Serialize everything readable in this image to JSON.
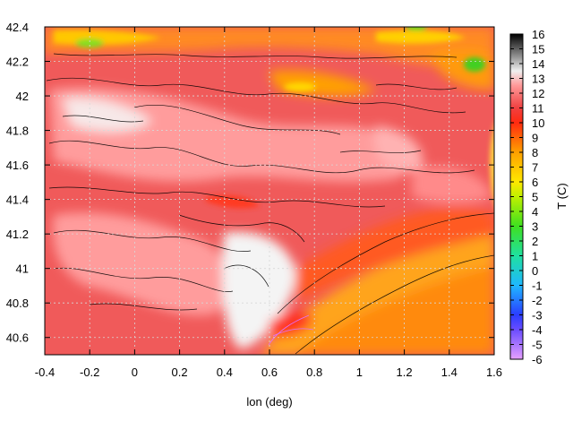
{
  "chart_data": {
    "type": "heatmap",
    "title": "",
    "xlabel": "lon (deg)",
    "ylabel": "",
    "colorbar_label": "T (C)",
    "xlim": [
      -0.4,
      1.6
    ],
    "ylim": [
      40.5,
      42.4
    ],
    "clim": [
      -6,
      16
    ],
    "x_ticks": [
      -0.4,
      -0.2,
      0,
      0.2,
      0.4,
      0.6,
      0.8,
      1,
      1.2,
      1.4,
      1.6
    ],
    "x_tick_labels": [
      "-0.4",
      "-0.2",
      "0",
      "0.2",
      "0.4",
      "0.6",
      "0.8",
      "1",
      "1.2",
      "1.4",
      "1.6"
    ],
    "y_ticks": [
      40.6,
      40.8,
      41,
      41.2,
      41.4,
      41.6,
      41.8,
      42,
      42.2,
      42.4
    ],
    "y_tick_labels": [
      "40.6",
      "40.8",
      "41",
      "41.2",
      "41.4",
      "41.6",
      "41.8",
      "42",
      "42.2",
      "42.4"
    ],
    "colorbar_ticks": [
      -6,
      -5,
      -4,
      -3,
      -2,
      -1,
      0,
      1,
      2,
      3,
      4,
      5,
      6,
      7,
      8,
      9,
      10,
      11,
      12,
      13,
      14,
      15,
      16
    ],
    "colorbar_tick_labels": [
      "-6",
      "-5",
      "-4",
      "-3",
      "-2",
      "-1",
      "0",
      "1",
      "2",
      "3",
      "4",
      "5",
      "6",
      "7",
      "8",
      "9",
      "10",
      "11",
      "12",
      "13",
      "14",
      "15",
      "16"
    ],
    "grid": true,
    "colormap": [
      {
        "t": -6,
        "color": "#e6a0ff"
      },
      {
        "t": -4,
        "color": "#6a4cff"
      },
      {
        "t": -3,
        "color": "#2a3dff"
      },
      {
        "t": -1,
        "color": "#1fb8ff"
      },
      {
        "t": 1,
        "color": "#1fe0a0"
      },
      {
        "t": 3,
        "color": "#3fe020"
      },
      {
        "t": 5,
        "color": "#c0f000"
      },
      {
        "t": 6,
        "color": "#ffe800"
      },
      {
        "t": 8,
        "color": "#ffa000"
      },
      {
        "t": 10,
        "color": "#ff2a10"
      },
      {
        "t": 11,
        "color": "#f04040"
      },
      {
        "t": 12.5,
        "color": "#ff9898"
      },
      {
        "t": 13.5,
        "color": "#f0f0f0"
      },
      {
        "t": 16,
        "color": "#000000"
      }
    ]
  }
}
